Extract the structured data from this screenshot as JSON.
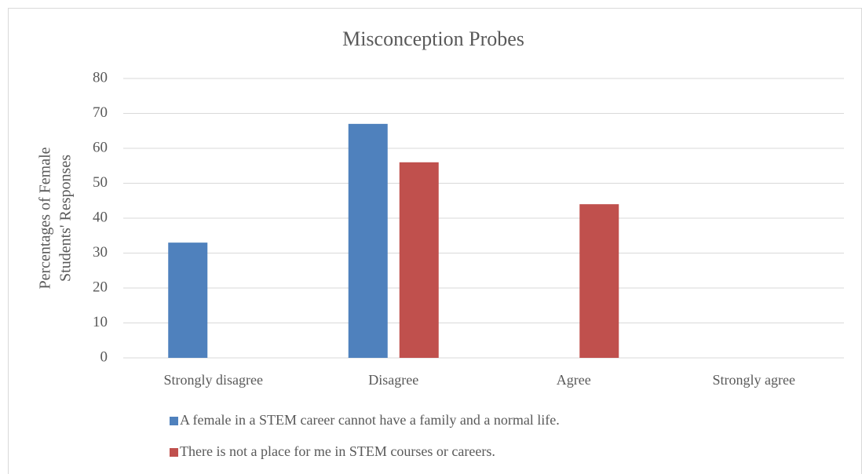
{
  "chart_data": {
    "type": "bar",
    "title": "Misconception Probes",
    "y_label": [
      "Percentages of Female",
      "Students' Responses"
    ],
    "categories": [
      "Strongly disagree",
      "Disagree",
      "Agree",
      "Strongly agree"
    ],
    "series": [
      {
        "name": "A female in a STEM career cannot have a family and a normal life.",
        "color": "#4f81bd",
        "values": [
          33,
          67,
          0,
          0
        ]
      },
      {
        "name": "There is not a place for me in STEM courses or careers.",
        "color": "#c0504d",
        "values": [
          0,
          56,
          44,
          0
        ]
      }
    ],
    "ylim": [
      0,
      80
    ],
    "yticks": [
      0,
      10,
      20,
      30,
      40,
      50,
      60,
      70,
      80
    ],
    "grid": true,
    "legend": "bottom"
  }
}
